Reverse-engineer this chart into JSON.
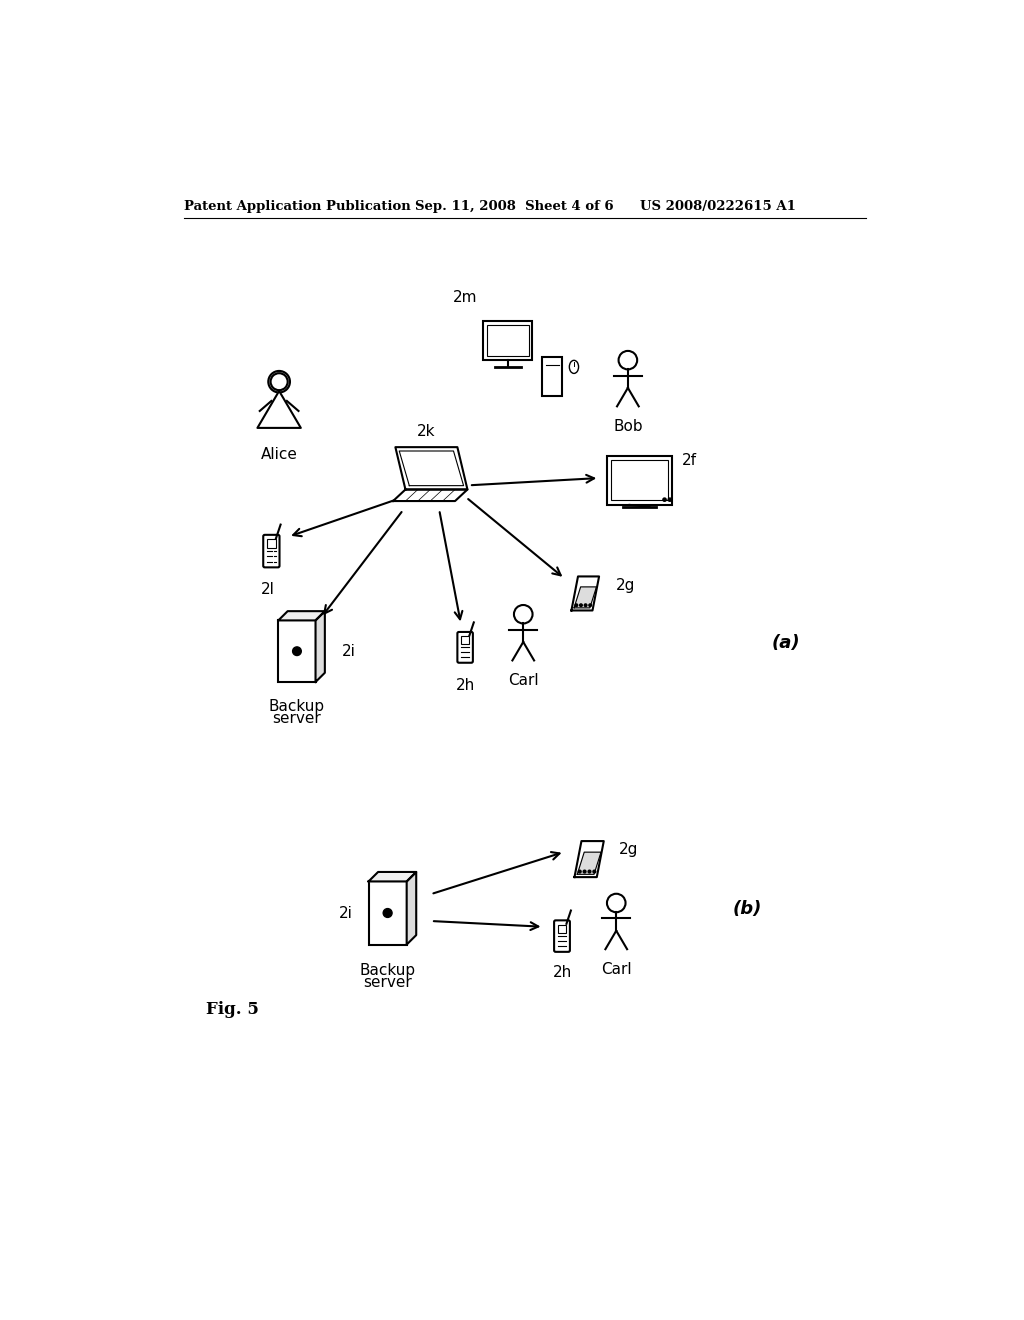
{
  "bg_color": "#ffffff",
  "header_left": "Patent Application Publication",
  "header_mid": "Sep. 11, 2008  Sheet 4 of 6",
  "header_right": "US 2008/0222615 A1",
  "fig_label": "Fig. 5",
  "diagram_a_label": "(a)",
  "diagram_b_label": "(b)",
  "text_color": "#000000",
  "line_color": "#000000"
}
